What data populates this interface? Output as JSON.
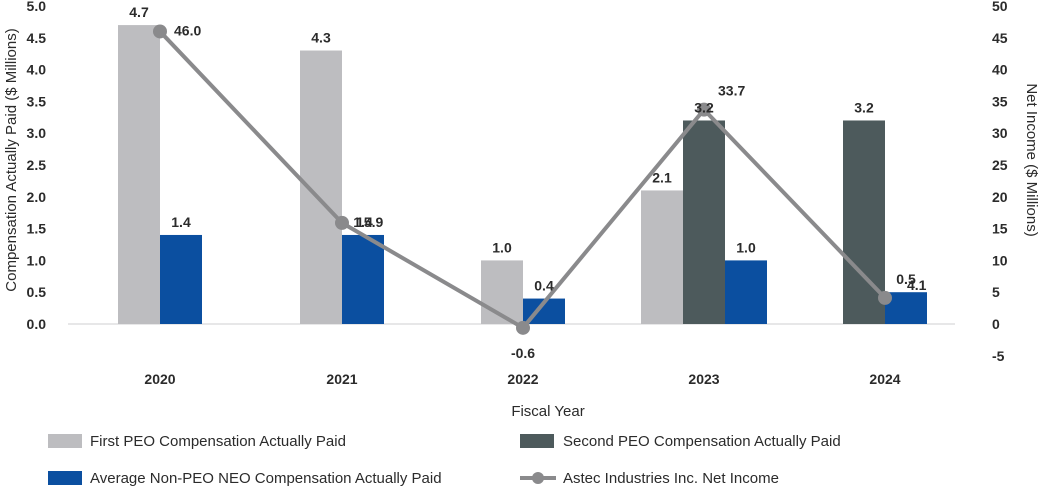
{
  "chart_data": {
    "type": "bar+line",
    "categories": [
      "2020",
      "2021",
      "2022",
      "2023",
      "2024"
    ],
    "xlabel": "Fiscal Year",
    "ylabel_left": "Compensation Actually Paid ($ Millions)",
    "ylabel_right": "Net Income ($ Millions)",
    "ylim_left": [
      0,
      5.0
    ],
    "ylim_right": [
      -5,
      50
    ],
    "yticks_left": [
      "0.0",
      "0.5",
      "1.0",
      "1.5",
      "2.0",
      "2.5",
      "3.0",
      "3.5",
      "4.0",
      "4.5",
      "5.0"
    ],
    "yticks_right": [
      "-5",
      "0",
      "5",
      "10",
      "15",
      "20",
      "25",
      "30",
      "35",
      "40",
      "45",
      "50"
    ],
    "series": [
      {
        "name": "First PEO Compensation Actually Paid",
        "kind": "bar",
        "color": "#bdbdc0",
        "values": [
          4.7,
          4.3,
          1.0,
          2.1,
          null
        ],
        "labels": [
          "4.7",
          "4.3",
          "1.0",
          "2.1",
          ""
        ]
      },
      {
        "name": "Second PEO Compensation Actually Paid",
        "kind": "bar",
        "color": "#4d5a5c",
        "values": [
          null,
          null,
          null,
          3.2,
          3.2
        ],
        "labels": [
          "",
          "",
          "",
          "3.2",
          "3.2"
        ]
      },
      {
        "name": "Average Non-PEO NEO Compensation Actually Paid",
        "kind": "bar",
        "color": "#0b4fa0",
        "values": [
          1.4,
          1.4,
          0.4,
          1.0,
          0.5
        ],
        "labels": [
          "1.4",
          "1.4",
          "0.4",
          "1.0",
          "0.5"
        ]
      },
      {
        "name": "Astec Industries Inc. Net Income",
        "kind": "line",
        "axis": "right",
        "color": "#8a8a8c",
        "values": [
          46.0,
          15.9,
          -0.6,
          33.7,
          4.1
        ],
        "labels": [
          "46.0",
          "15.9",
          "-0.6",
          "33.7",
          "4.1"
        ]
      }
    ],
    "legend": {
      "position": "bottom",
      "items": [
        "First PEO Compensation Actually Paid",
        "Second PEO Compensation Actually Paid",
        "Average Non-PEO NEO Compensation Actually Paid",
        "Astec Industries Inc. Net Income"
      ]
    }
  }
}
